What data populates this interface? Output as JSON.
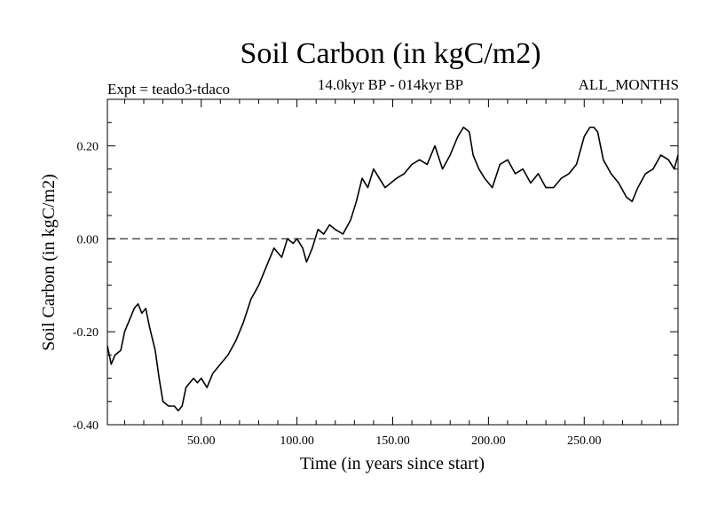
{
  "chart_data": {
    "type": "line",
    "title": "Soil Carbon (in kgC/m2)",
    "subtitle_left": "Expt = teado3-tdaco",
    "subtitle_center": "14.0kyr BP - 014kyr BP",
    "subtitle_right": "ALL_MONTHS",
    "xlabel": "Time (in years since start)",
    "ylabel": "Soil Carbon (in kgC/m2)",
    "xlim": [
      1,
      299
    ],
    "ylim": [
      -0.4,
      0.3
    ],
    "xticks": [
      50,
      100,
      150,
      200,
      250
    ],
    "xtick_labels": [
      "50.00",
      "100.00",
      "150.00",
      "200.00",
      "250.00"
    ],
    "yticks": [
      -0.4,
      -0.2,
      0.0,
      0.2
    ],
    "ytick_labels": [
      "-0.40",
      "-0.20",
      "0.00",
      "0.20"
    ],
    "reference_line": {
      "y": 0.0,
      "style": "dashed"
    },
    "series": [
      {
        "x": [
          1,
          3,
          5,
          8,
          10,
          13,
          15,
          17,
          19,
          21,
          23,
          26,
          28,
          30,
          33,
          36,
          38,
          40,
          42,
          44,
          46,
          48,
          50,
          53,
          56,
          60,
          64,
          68,
          72,
          76,
          80,
          84,
          88,
          92,
          95,
          98,
          100,
          103,
          105,
          108,
          111,
          114,
          117,
          120,
          124,
          128,
          131,
          134,
          137,
          140,
          143,
          146,
          149,
          152,
          156,
          160,
          164,
          168,
          172,
          176,
          180,
          184,
          187,
          190,
          192,
          195,
          198,
          202,
          206,
          210,
          214,
          218,
          222,
          226,
          230,
          234,
          238,
          242,
          246,
          250,
          253,
          255,
          257,
          260,
          264,
          268,
          272,
          275,
          278,
          282,
          286,
          290,
          294,
          297,
          299
        ],
        "y": [
          -0.23,
          -0.27,
          -0.25,
          -0.24,
          -0.2,
          -0.17,
          -0.15,
          -0.14,
          -0.16,
          -0.15,
          -0.19,
          -0.24,
          -0.3,
          -0.35,
          -0.36,
          -0.36,
          -0.37,
          -0.36,
          -0.32,
          -0.31,
          -0.3,
          -0.31,
          -0.3,
          -0.32,
          -0.29,
          -0.27,
          -0.25,
          -0.22,
          -0.18,
          -0.13,
          -0.1,
          -0.06,
          -0.02,
          -0.04,
          0.0,
          -0.01,
          0.0,
          -0.02,
          -0.05,
          -0.02,
          0.02,
          0.01,
          0.03,
          0.02,
          0.01,
          0.04,
          0.08,
          0.13,
          0.11,
          0.15,
          0.13,
          0.11,
          0.12,
          0.13,
          0.14,
          0.16,
          0.17,
          0.16,
          0.2,
          0.15,
          0.18,
          0.22,
          0.24,
          0.23,
          0.18,
          0.15,
          0.13,
          0.11,
          0.16,
          0.17,
          0.14,
          0.15,
          0.12,
          0.14,
          0.11,
          0.11,
          0.13,
          0.14,
          0.16,
          0.22,
          0.24,
          0.24,
          0.23,
          0.17,
          0.14,
          0.12,
          0.09,
          0.08,
          0.11,
          0.14,
          0.15,
          0.18,
          0.17,
          0.15,
          0.18
        ]
      }
    ]
  }
}
